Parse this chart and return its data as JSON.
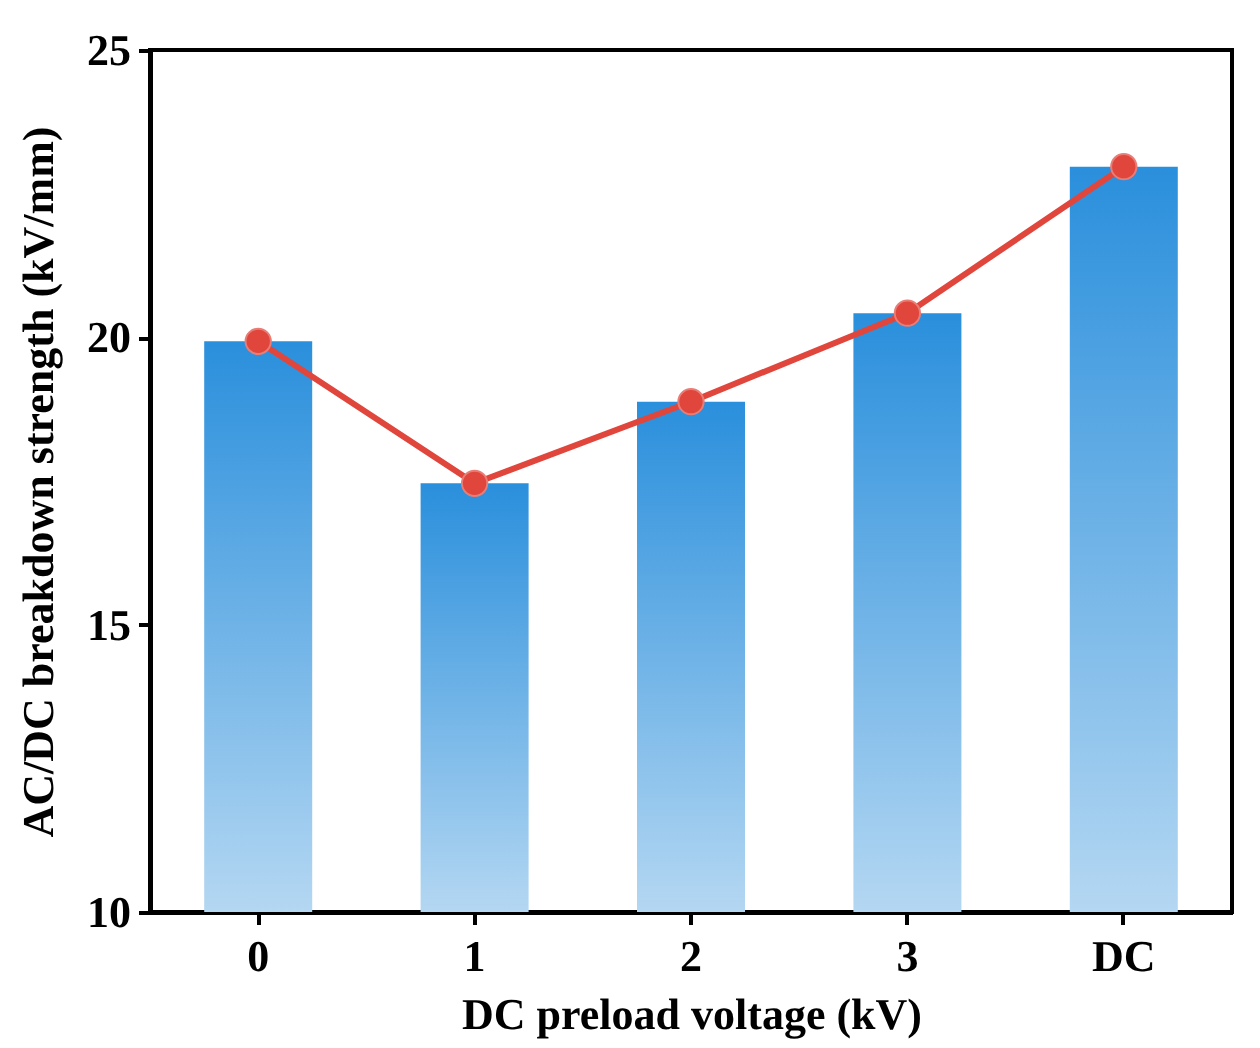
{
  "chart_data": {
    "type": "bar",
    "xlabel": "DC preload voltage (kV)",
    "ylabel": "AC/DC breakdown strength (kV/mm)",
    "categories": [
      "0",
      "1",
      "2",
      "3",
      "DC"
    ],
    "series": [
      {
        "color": "#2a8fdc",
        "values": [
          19.93,
          17.46,
          18.88,
          20.42,
          22.97
        ]
      },
      {
        "type": "line",
        "color": "#e0463c",
        "marker": "circle",
        "values": [
          19.93,
          17.46,
          18.88,
          20.42,
          22.97
        ]
      }
    ],
    "ylim": [
      10,
      25
    ],
    "yticks": [
      10,
      15,
      20,
      25
    ],
    "grid": false
  }
}
